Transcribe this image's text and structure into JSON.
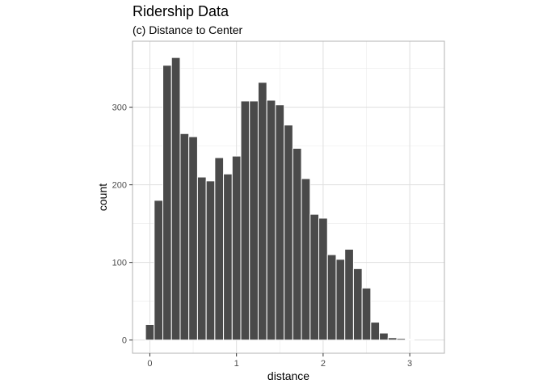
{
  "chart_data": {
    "type": "bar",
    "title": "Ridership Data",
    "subtitle": "(c) Distance to Center",
    "xlabel": "distance",
    "ylabel": "count",
    "xlim": [
      -0.2,
      3.4
    ],
    "ylim": [
      -17,
      385
    ],
    "x_ticks": [
      0,
      1,
      2,
      3
    ],
    "y_ticks": [
      0,
      100,
      200,
      300
    ],
    "binwidth": 0.1,
    "bin_centers": [
      0.0,
      0.1,
      0.2,
      0.3,
      0.4,
      0.5,
      0.6,
      0.7,
      0.8,
      0.9,
      1.0,
      1.1,
      1.2,
      1.3,
      1.4,
      1.5,
      1.6,
      1.7,
      1.8,
      1.9,
      2.0,
      2.1,
      2.2,
      2.3,
      2.4,
      2.5,
      2.6,
      2.7,
      2.8,
      2.9,
      3.0,
      3.1
    ],
    "values": [
      20,
      180,
      354,
      364,
      266,
      262,
      210,
      205,
      235,
      214,
      237,
      308,
      308,
      332,
      309,
      303,
      277,
      247,
      208,
      162,
      157,
      110,
      104,
      117,
      92,
      67,
      23,
      9,
      3,
      2,
      1,
      0
    ],
    "grid": true,
    "bar_color": "#4a4a4a"
  }
}
